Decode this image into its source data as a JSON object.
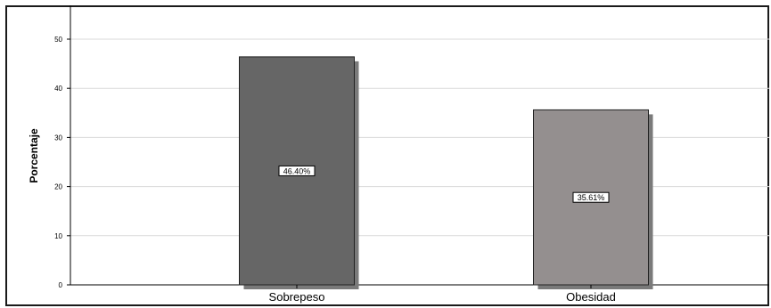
{
  "chart_data": {
    "type": "bar",
    "ylabel": "Porcentaje",
    "xlabel": "",
    "categories": [
      "Sobrepeso",
      "Obesidad"
    ],
    "values": [
      46.4,
      35.61
    ],
    "data_labels": [
      "46.40%",
      "35.61%"
    ],
    "ylim": [
      0,
      55
    ],
    "yticks": [
      0,
      10,
      20,
      30,
      40,
      50
    ],
    "grid": true,
    "bar_colors": [
      "#666666",
      "#948f8f"
    ],
    "shadow_color": "#7a7a7a"
  }
}
